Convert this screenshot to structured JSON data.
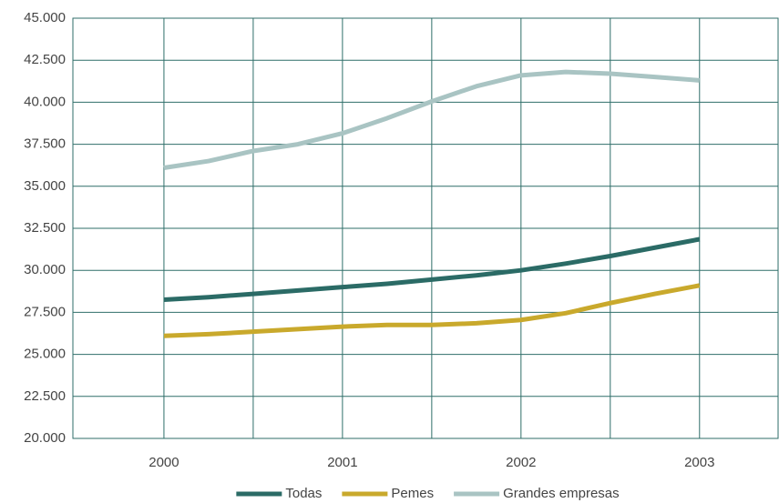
{
  "chart_data": {
    "type": "line",
    "x": [
      2000,
      2000.25,
      2000.5,
      2000.75,
      2001,
      2001.25,
      2001.5,
      2001.75,
      2002,
      2002.25,
      2002.5,
      2002.75,
      2003
    ],
    "series": [
      {
        "name": "Todas",
        "color": "#2b6b66",
        "values": [
          28.25,
          28.4,
          28.6,
          28.8,
          29.0,
          29.2,
          29.45,
          29.7,
          30.0,
          30.4,
          30.85,
          31.35,
          31.85
        ]
      },
      {
        "name": "Pemes",
        "color": "#c9a92c",
        "values": [
          26.1,
          26.2,
          26.35,
          26.5,
          26.65,
          26.75,
          26.75,
          26.85,
          27.05,
          27.45,
          28.05,
          28.6,
          29.1
        ]
      },
      {
        "name": "Grandes empresas",
        "color": "#a9c4c3",
        "values": [
          36.1,
          36.5,
          37.1,
          37.5,
          38.15,
          39.05,
          40.05,
          40.95,
          41.6,
          41.8,
          41.7,
          41.5,
          41.3
        ]
      }
    ],
    "xlim": [
      1999.49,
      2003.44
    ],
    "xticks": [
      2000,
      2001,
      2002,
      2003
    ],
    "xgrid": [
      2000.5,
      2001.5,
      2002.5
    ],
    "ylim": [
      20,
      45
    ],
    "yticks": [
      {
        "value": 20,
        "label": "20.000"
      },
      {
        "value": 22.5,
        "label": "22.500"
      },
      {
        "value": 25,
        "label": "25.000"
      },
      {
        "value": 27.5,
        "label": "27.500"
      },
      {
        "value": 30,
        "label": "30.000"
      },
      {
        "value": 32.5,
        "label": "32.500"
      },
      {
        "value": 35,
        "label": "35.000"
      },
      {
        "value": 37.5,
        "label": "37.500"
      },
      {
        "value": 40,
        "label": "40.000"
      },
      {
        "value": 42.5,
        "label": "42.500"
      },
      {
        "value": 45,
        "label": "45.000"
      }
    ],
    "grid": true,
    "grid_color": "#2f6e69",
    "legend": "bottom"
  }
}
